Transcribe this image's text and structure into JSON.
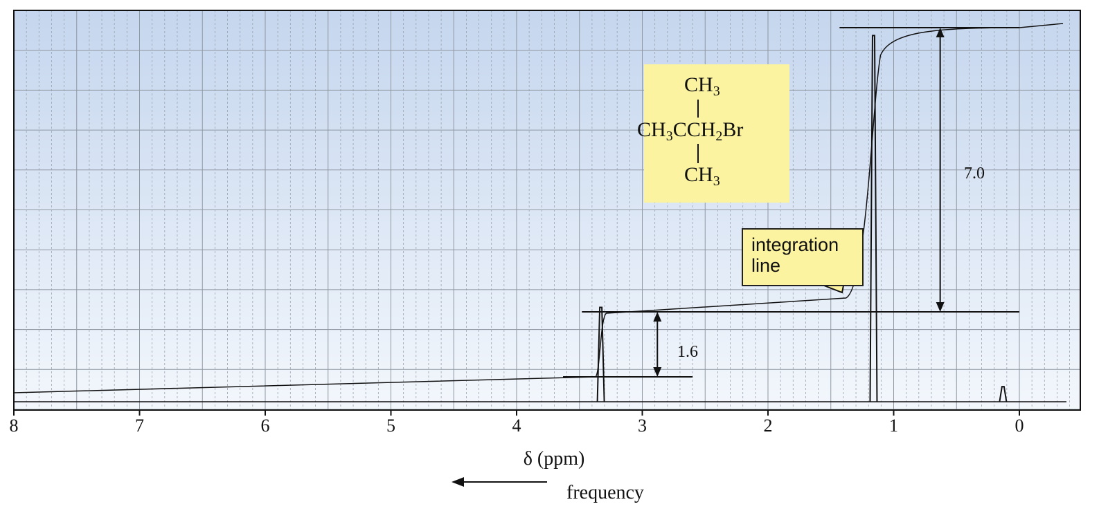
{
  "chart_data": {
    "type": "line",
    "title": "",
    "xlabel": "δ (ppm)",
    "ylabel": "",
    "xlim": [
      8,
      -0.4
    ],
    "x_reversed": true,
    "x_ticks": [
      8,
      7,
      6,
      5,
      4,
      3,
      2,
      1,
      0
    ],
    "x_tick_labels": [
      "8",
      "7",
      "6",
      "5",
      "4",
      "3",
      "2",
      "1",
      "0"
    ],
    "grid": true,
    "series": [
      {
        "name": "",
        "kind": "spectrum",
        "peaks": [
          {
            "x": 3.33,
            "height": 0.25
          },
          {
            "x": 1.16,
            "height": 0.97
          },
          {
            "x": 0.13,
            "height": 0.04
          }
        ]
      },
      {
        "name": "",
        "kind": "integration",
        "steps": [
          {
            "x": 3.33,
            "relative_height": 1.6
          },
          {
            "x": 1.16,
            "relative_height": 7.0
          }
        ]
      }
    ],
    "annotations": {
      "integration_1": "1.6",
      "integration_2": "7.0",
      "callout": "integration line",
      "arrow_label": "frequency"
    }
  },
  "structure": {
    "top": "CH",
    "top_sub": "3",
    "mid_left": "CH",
    "mid_left_sub": "3",
    "mid_c": "CCH",
    "mid_c_sub": "2",
    "mid_right": "Br",
    "bottom": "CH",
    "bottom_sub": "3"
  },
  "colors": {
    "plot_bg_top": "#c5d6ee",
    "plot_bg_bottom": "#f3f7fc",
    "grid_major": "#8e96a0",
    "grid_minor": "#9aa2ad",
    "highlight_box": "#fbf3a0",
    "ink": "#111111"
  }
}
